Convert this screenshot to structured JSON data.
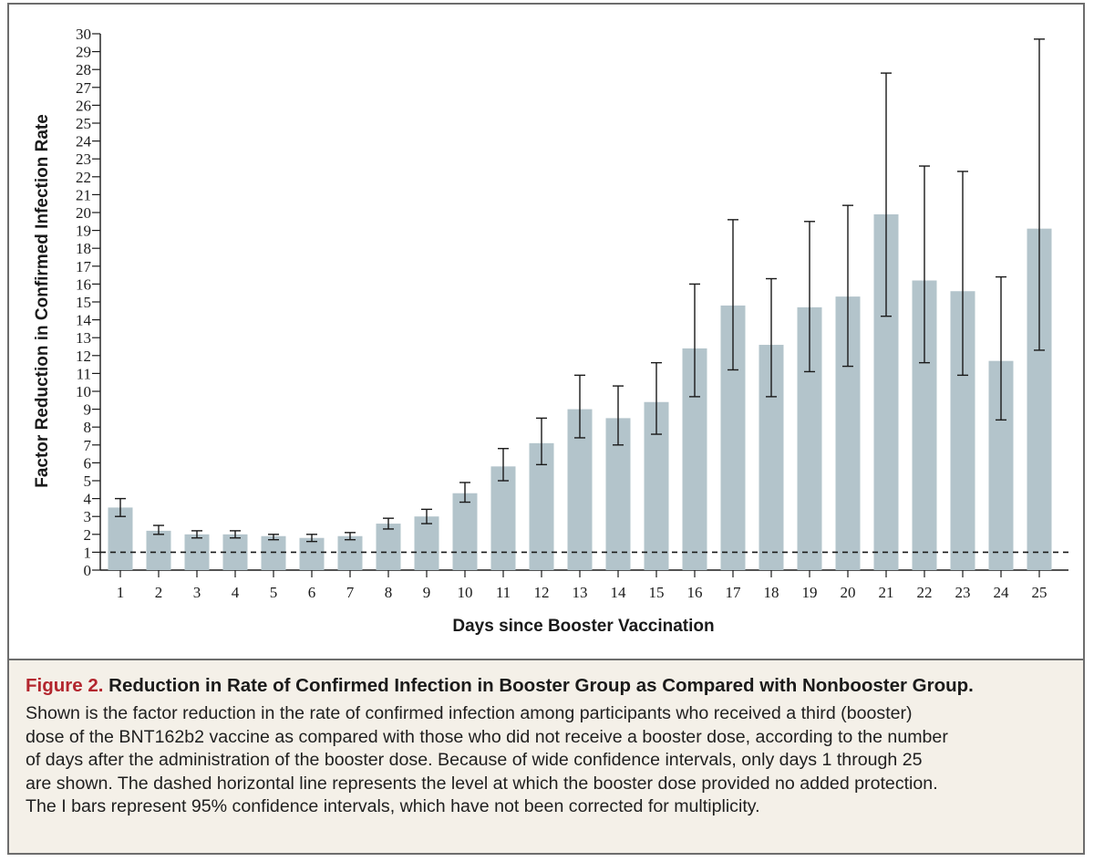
{
  "chart_data": {
    "type": "bar",
    "title": "",
    "xlabel": "Days since Booster Vaccination",
    "ylabel": "Factor Reduction in Confirmed Infection Rate",
    "ylim": [
      0,
      30
    ],
    "yticks": [
      0,
      1,
      2,
      3,
      4,
      5,
      6,
      7,
      8,
      9,
      10,
      11,
      12,
      13,
      14,
      15,
      16,
      17,
      18,
      19,
      20,
      21,
      22,
      23,
      24,
      25,
      26,
      27,
      28,
      29,
      30
    ],
    "categories": [
      "1",
      "2",
      "3",
      "4",
      "5",
      "6",
      "7",
      "8",
      "9",
      "10",
      "11",
      "12",
      "13",
      "14",
      "15",
      "16",
      "17",
      "18",
      "19",
      "20",
      "21",
      "22",
      "23",
      "24",
      "25"
    ],
    "values": [
      3.5,
      2.2,
      2.0,
      2.0,
      1.9,
      1.8,
      1.9,
      2.6,
      3.0,
      4.3,
      5.8,
      7.1,
      9.0,
      8.5,
      9.4,
      12.4,
      14.8,
      12.6,
      14.7,
      15.3,
      19.9,
      16.2,
      15.6,
      11.7,
      19.1
    ],
    "ci_lower": [
      3.0,
      2.0,
      1.8,
      1.8,
      1.7,
      1.6,
      1.7,
      2.3,
      2.6,
      3.8,
      5.0,
      5.9,
      7.4,
      7.0,
      7.6,
      9.7,
      11.2,
      9.7,
      11.1,
      11.4,
      14.2,
      11.6,
      10.9,
      8.4,
      12.3
    ],
    "ci_upper": [
      4.0,
      2.5,
      2.2,
      2.2,
      2.0,
      2.0,
      2.1,
      2.9,
      3.4,
      4.9,
      6.8,
      8.5,
      10.9,
      10.3,
      11.6,
      16.0,
      19.6,
      16.3,
      19.5,
      20.4,
      27.8,
      22.6,
      22.3,
      16.4,
      29.7
    ],
    "reference_line": 1,
    "reference_line_style": "dashed",
    "grid": false,
    "colors": {
      "bar": "#b3c4cb",
      "error_bar": "#1a1a1a",
      "reference": "#1a1a1a"
    }
  },
  "caption": {
    "figure_label": "Figure 2.",
    "title": "Reduction in Rate of Confirmed Infection in Booster Group as Compared with Nonbooster Group.",
    "lines": [
      "Shown is the factor reduction in the rate of confirmed infection among participants who received a third (booster)",
      "dose of the BNT162b2 vaccine as compared with those who did not receive a booster dose, according to the number",
      "of days after the administration of the booster dose. Because of wide confidence intervals, only days 1 through 25",
      "are shown. The dashed horizontal line represents the level at which the booster dose provided no added protection.",
      "The I bars represent 95% confidence intervals, which have not been corrected for multiplicity."
    ],
    "colors": {
      "figure_label": "#b3262e",
      "background": "#f4f0e8"
    }
  }
}
